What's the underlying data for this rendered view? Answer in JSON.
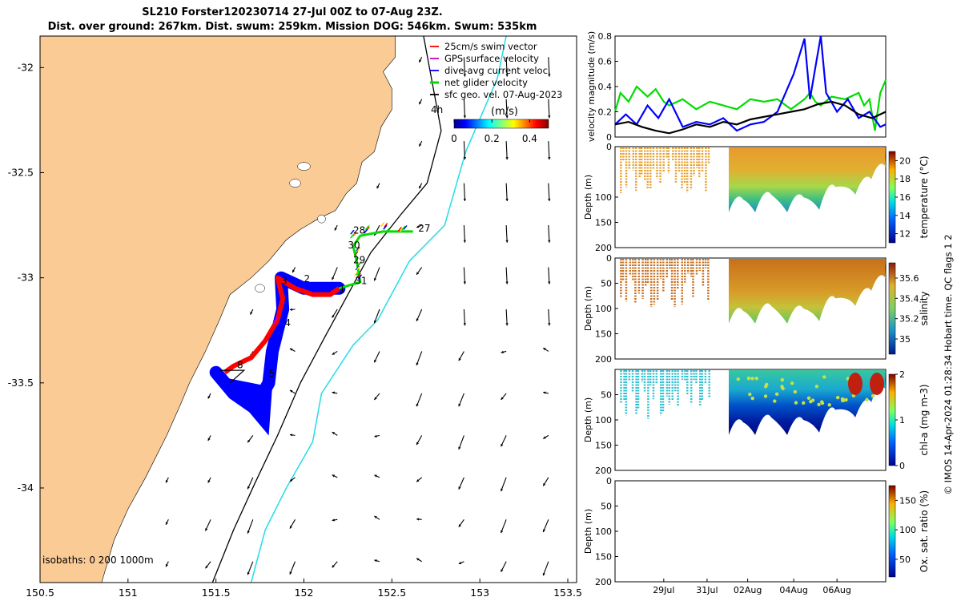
{
  "header": {
    "title_line1": "SL210 Forster120230714 27-Jul 00Z to 07-Aug 23Z.",
    "title_line2": "Dist. over ground: 267km. Dist. swum: 259km. Mission DOG: 546km. Swum: 535km"
  },
  "footer": {
    "credit": "© IMOS 14-Apr-2024 01:28:34 Hobart time. QC flags 1  2"
  },
  "colors": {
    "land": "#fbcb96",
    "shelf": "#000000",
    "isobath_1000": "#22dde6",
    "swim": "#ff0000",
    "gps": "#cc00cc",
    "dive": "#0000ff",
    "net": "#00dd00",
    "sfc": "#000000"
  },
  "chart_data": [
    {
      "type": "scatter",
      "name": "map",
      "xlim": [
        150.5,
        153.55
      ],
      "ylim": [
        -34.45,
        -31.85
      ],
      "xticks": [
        150.5,
        151,
        151.5,
        152,
        152.5,
        153,
        153.5
      ],
      "xtick_labels": [
        "150.5",
        "151",
        "151.5",
        "152",
        "152.5",
        "153",
        "153.5"
      ],
      "yticks": [
        -32,
        -32.5,
        -33,
        -33.5,
        -34
      ],
      "ytick_labels": [
        "-32",
        "-32.5",
        "-33",
        "-33.5",
        "-34"
      ],
      "legend": [
        {
          "label": "25cm/s swim vector",
          "color": "#ff0000"
        },
        {
          "label": "GPS surface velocity",
          "color": "#cc00cc"
        },
        {
          "label": "dive-avg current veloc.",
          "color": "#0000ff"
        },
        {
          "label": "net glider velocity",
          "color": "#00dd00"
        },
        {
          "label": "sfc geo. vel. 07-Aug-2023",
          "color": "#000000"
        }
      ],
      "legend_extra": "4h",
      "colorbar": {
        "label": "(m/s)",
        "ticks": [
          "0",
          "0.2",
          "0.4"
        ],
        "range": [
          0,
          0.5
        ]
      },
      "isobaths_label": "isobaths: 0   200  1000m",
      "coastline": [
        [
          150.5,
          -31.85
        ],
        [
          152.52,
          -31.85
        ],
        [
          152.52,
          -31.95
        ],
        [
          152.45,
          -32.02
        ],
        [
          152.5,
          -32.1
        ],
        [
          152.5,
          -32.2
        ],
        [
          152.44,
          -32.28
        ],
        [
          152.4,
          -32.4
        ],
        [
          152.33,
          -32.45
        ],
        [
          152.3,
          -32.55
        ],
        [
          152.24,
          -32.6
        ],
        [
          152.18,
          -32.68
        ],
        [
          152.08,
          -32.72
        ],
        [
          151.98,
          -32.77
        ],
        [
          151.9,
          -32.82
        ],
        [
          151.8,
          -32.92
        ],
        [
          151.7,
          -33.0
        ],
        [
          151.58,
          -33.08
        ],
        [
          151.52,
          -33.2
        ],
        [
          151.44,
          -33.35
        ],
        [
          151.35,
          -33.5
        ],
        [
          151.3,
          -33.6
        ],
        [
          151.22,
          -33.75
        ],
        [
          151.1,
          -33.95
        ],
        [
          151.0,
          -34.1
        ],
        [
          150.92,
          -34.25
        ],
        [
          150.85,
          -34.45
        ],
        [
          150.5,
          -34.45
        ]
      ],
      "isobath_200": [
        [
          152.68,
          -31.85
        ],
        [
          152.78,
          -32.3
        ],
        [
          152.7,
          -32.55
        ],
        [
          152.55,
          -32.7
        ],
        [
          152.38,
          -32.88
        ],
        [
          152.25,
          -33.08
        ],
        [
          152.12,
          -33.28
        ],
        [
          151.98,
          -33.5
        ],
        [
          151.85,
          -33.75
        ],
        [
          151.72,
          -33.98
        ],
        [
          151.6,
          -34.2
        ],
        [
          151.48,
          -34.45
        ]
      ],
      "isobath_1000": [
        [
          153.15,
          -31.85
        ],
        [
          153.1,
          -32.05
        ],
        [
          152.92,
          -32.4
        ],
        [
          152.8,
          -32.75
        ],
        [
          152.6,
          -32.92
        ],
        [
          152.42,
          -33.2
        ],
        [
          152.28,
          -33.32
        ],
        [
          152.1,
          -33.55
        ],
        [
          152.05,
          -33.78
        ],
        [
          151.9,
          -34.0
        ],
        [
          151.78,
          -34.2
        ],
        [
          151.7,
          -34.45
        ]
      ],
      "track_labels": [
        {
          "label": "1",
          "lon": 152.2,
          "lat": -33.07
        },
        {
          "label": "2",
          "lon": 152.0,
          "lat": -33.02
        },
        {
          "label": "3",
          "lon": 151.87,
          "lat": -33.03
        },
        {
          "label": "4",
          "lon": 151.89,
          "lat": -33.23
        },
        {
          "label": "5",
          "lon": 151.8,
          "lat": -33.47
        },
        {
          "label": "8",
          "lon": 151.62,
          "lat": -33.43
        },
        {
          "label": "27",
          "lon": 152.65,
          "lat": -32.78
        },
        {
          "label": "28",
          "lon": 152.28,
          "lat": -32.79
        },
        {
          "label": "29",
          "lon": 152.28,
          "lat": -32.93
        },
        {
          "label": "30",
          "lon": 152.25,
          "lat": -32.86
        },
        {
          "label": "31",
          "lon": 152.29,
          "lat": -33.03
        }
      ]
    },
    {
      "type": "line",
      "name": "velocity",
      "ylabel": "velocity magnitude (m/s)",
      "ylim": [
        0,
        0.8
      ],
      "yticks": [
        "0",
        "0.2",
        "0.4",
        "0.6",
        "0.8"
      ],
      "series": [
        {
          "name": "net glider velocity",
          "color": "#00dd00",
          "x": [
            0,
            0.02,
            0.05,
            0.08,
            0.12,
            0.15,
            0.18,
            0.2,
            0.25,
            0.3,
            0.35,
            0.4,
            0.45,
            0.5,
            0.55,
            0.6,
            0.65,
            0.7,
            0.72,
            0.74,
            0.76,
            0.8,
            0.85,
            0.9,
            0.92,
            0.94,
            0.96,
            0.98,
            1.0
          ],
          "y": [
            0.2,
            0.35,
            0.28,
            0.4,
            0.32,
            0.38,
            0.28,
            0.25,
            0.3,
            0.22,
            0.28,
            0.25,
            0.22,
            0.3,
            0.28,
            0.3,
            0.22,
            0.3,
            0.35,
            0.28,
            0.25,
            0.32,
            0.3,
            0.35,
            0.25,
            0.3,
            0.05,
            0.35,
            0.45
          ]
        },
        {
          "name": "dive-avg current veloc.",
          "color": "#0000ff",
          "x": [
            0,
            0.04,
            0.08,
            0.12,
            0.16,
            0.2,
            0.25,
            0.3,
            0.35,
            0.4,
            0.45,
            0.5,
            0.55,
            0.6,
            0.63,
            0.66,
            0.7,
            0.72,
            0.74,
            0.76,
            0.78,
            0.82,
            0.86,
            0.9,
            0.94,
            0.98,
            1.0
          ],
          "y": [
            0.1,
            0.18,
            0.1,
            0.25,
            0.15,
            0.3,
            0.08,
            0.12,
            0.1,
            0.15,
            0.05,
            0.1,
            0.12,
            0.2,
            0.35,
            0.5,
            0.78,
            0.3,
            0.55,
            0.8,
            0.35,
            0.2,
            0.3,
            0.15,
            0.2,
            0.08,
            0.1
          ]
        },
        {
          "name": "sfc geo. vel.",
          "color": "#000000",
          "x": [
            0,
            0.05,
            0.1,
            0.15,
            0.2,
            0.25,
            0.3,
            0.35,
            0.4,
            0.45,
            0.5,
            0.55,
            0.6,
            0.65,
            0.7,
            0.75,
            0.8,
            0.85,
            0.9,
            0.95,
            1.0
          ],
          "y": [
            0.1,
            0.12,
            0.08,
            0.05,
            0.03,
            0.06,
            0.1,
            0.08,
            0.12,
            0.1,
            0.14,
            0.16,
            0.18,
            0.2,
            0.22,
            0.26,
            0.28,
            0.25,
            0.18,
            0.15,
            0.2
          ]
        }
      ]
    },
    {
      "type": "heatmap",
      "name": "temperature",
      "ylabel": "Depth (m)",
      "clabel": "temperature (°C)",
      "ylim": [
        0,
        200
      ],
      "yticks": [
        "0",
        "100",
        "150",
        "200"
      ],
      "cticks": [
        "12",
        "14",
        "16",
        "18",
        "20"
      ],
      "crange": [
        11,
        21
      ]
    },
    {
      "type": "heatmap",
      "name": "salinity",
      "ylabel": "Depth (m)",
      "clabel": "salinity",
      "ylim": [
        0,
        200
      ],
      "yticks": [
        "0",
        "50",
        "100",
        "150",
        "200"
      ],
      "cticks": [
        "35",
        "35.2",
        "35.4",
        "35.6"
      ],
      "crange": [
        34.85,
        35.75
      ]
    },
    {
      "type": "heatmap",
      "name": "chla",
      "ylabel": "Depth (m)",
      "clabel": "chl-a (mg m-3)",
      "ylim": [
        0,
        200
      ],
      "yticks": [
        "50",
        "100",
        "150",
        "200"
      ],
      "cticks": [
        "0",
        "1",
        "2"
      ],
      "crange": [
        0,
        2
      ]
    },
    {
      "type": "heatmap",
      "name": "oxygen",
      "ylabel": "Depth (m)",
      "clabel": "Ox. sat. ratio (%)",
      "ylim": [
        0,
        200
      ],
      "yticks": [
        "0",
        "50",
        "100",
        "150",
        "200"
      ],
      "cticks": [
        "50",
        "100",
        "150"
      ],
      "crange": [
        20,
        175
      ],
      "xtick_labels": [
        "29Jul",
        "31Jul",
        "02Aug",
        "04Aug",
        "06Aug"
      ]
    }
  ]
}
